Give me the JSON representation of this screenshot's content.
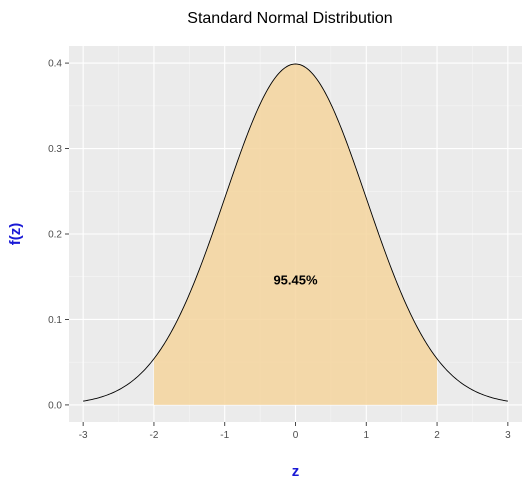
{
  "chart_data": {
    "type": "area",
    "title": "Standard Normal Distribution",
    "xlabel": "z",
    "ylabel": "f(z)",
    "xlim": [
      -3.2,
      3.2
    ],
    "ylim": [
      -0.02,
      0.42
    ],
    "x_ticks": [
      -3,
      -2,
      -1,
      0,
      1,
      2,
      3
    ],
    "y_ticks": [
      0.0,
      0.1,
      0.2,
      0.3,
      0.4
    ],
    "y_tick_labels": [
      "0.0",
      "0.1",
      "0.2",
      "0.3",
      "0.4"
    ],
    "series": [
      {
        "type": "line",
        "x": [
          -3.0,
          -2.8,
          -2.6,
          -2.4,
          -2.2,
          -2.0,
          -1.8,
          -1.6,
          -1.4,
          -1.2,
          -1.0,
          -0.8,
          -0.6,
          -0.4,
          -0.2,
          0.0,
          0.2,
          0.4,
          0.6,
          0.8,
          1.0,
          1.2,
          1.4,
          1.6,
          1.8,
          2.0,
          2.2,
          2.4,
          2.6,
          2.8,
          3.0
        ],
        "y": [
          0.0044,
          0.0079,
          0.0136,
          0.0224,
          0.0355,
          0.054,
          0.079,
          0.1109,
          0.1497,
          0.1942,
          0.242,
          0.2897,
          0.3332,
          0.3683,
          0.391,
          0.3989,
          0.391,
          0.3683,
          0.3332,
          0.2897,
          0.242,
          0.1942,
          0.1497,
          0.1109,
          0.079,
          0.054,
          0.0355,
          0.0224,
          0.0136,
          0.0079,
          0.0044
        ]
      },
      {
        "type": "area",
        "x_from": -2,
        "x_to": 2
      }
    ],
    "annotations": [
      {
        "text": "95.45%",
        "x": 0,
        "y": 0.147
      }
    ],
    "grid": true,
    "colors": {
      "panel_bg": "#ebebeb",
      "grid_major": "#ffffff",
      "grid_minor": "#f5f5f5",
      "fill": "#f5d59e",
      "curve": "#000000",
      "axis_title": "#1a1ad6",
      "tick_text": "#4d4d4d"
    }
  }
}
